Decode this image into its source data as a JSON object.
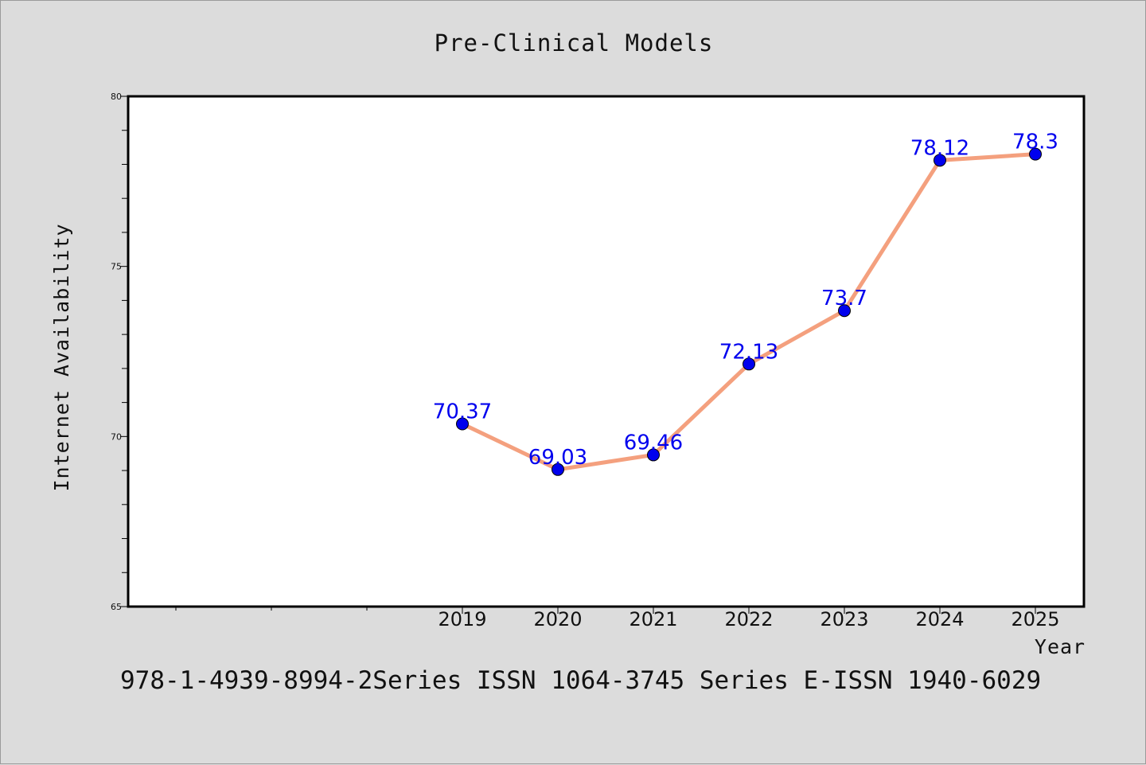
{
  "chart_data": {
    "type": "line",
    "title": "Pre-Clinical Models",
    "xlabel": "Year",
    "ylabel": "Internet Availability",
    "categories": [
      "2019",
      "2020",
      "2021",
      "2022",
      "2023",
      "2024",
      "2025"
    ],
    "values": [
      70.37,
      69.03,
      69.46,
      72.13,
      73.7,
      78.12,
      78.3
    ],
    "data_labels": [
      "70.37",
      "69.03",
      "69.46",
      "72.13",
      "73.7",
      "78.12",
      "78.3"
    ],
    "y_ticks": [
      "65",
      "70",
      "75",
      "80"
    ],
    "ylim": [
      65,
      80
    ],
    "grid": false,
    "line_color": "#f4a07e",
    "marker_color": "#0000ee",
    "label_color": "#0000ee"
  },
  "footer": {
    "text": "978-1-4939-8994-2Series ISSN 1064-3745 Series E-ISSN 1940-6029"
  }
}
